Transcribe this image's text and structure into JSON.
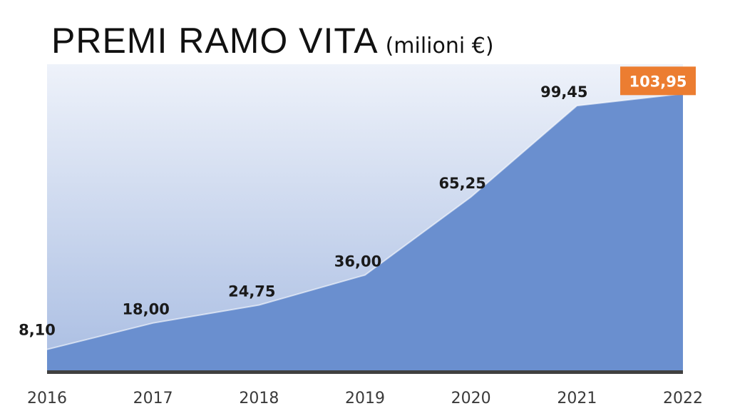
{
  "header": {
    "title": "PREMI RAMO VITA",
    "subtitle": "(milioni €)"
  },
  "colors": {
    "area_fill": "#6a8fcf",
    "background_gradient_top": "#eef2fa",
    "background_gradient_bottom": "#a9bde2",
    "axis_line": "#404040",
    "highlight_label_bg": "#ec7d31",
    "highlight_label_text": "#ffffff"
  },
  "chart_data": {
    "type": "area",
    "title": "PREMI RAMO VITA",
    "subtitle": "(milioni €)",
    "categories": [
      "2016",
      "2017",
      "2018",
      "2019",
      "2020",
      "2021",
      "2022"
    ],
    "values": [
      8.1,
      18.0,
      24.75,
      36.0,
      65.25,
      99.45,
      103.95
    ],
    "value_labels": [
      "8,10",
      "18,00",
      "24,75",
      "36,00",
      "65,25",
      "99,45",
      "103,95"
    ],
    "highlighted_label": "103,95",
    "ylim": [
      0,
      115
    ],
    "grid": false,
    "legend": "none"
  }
}
